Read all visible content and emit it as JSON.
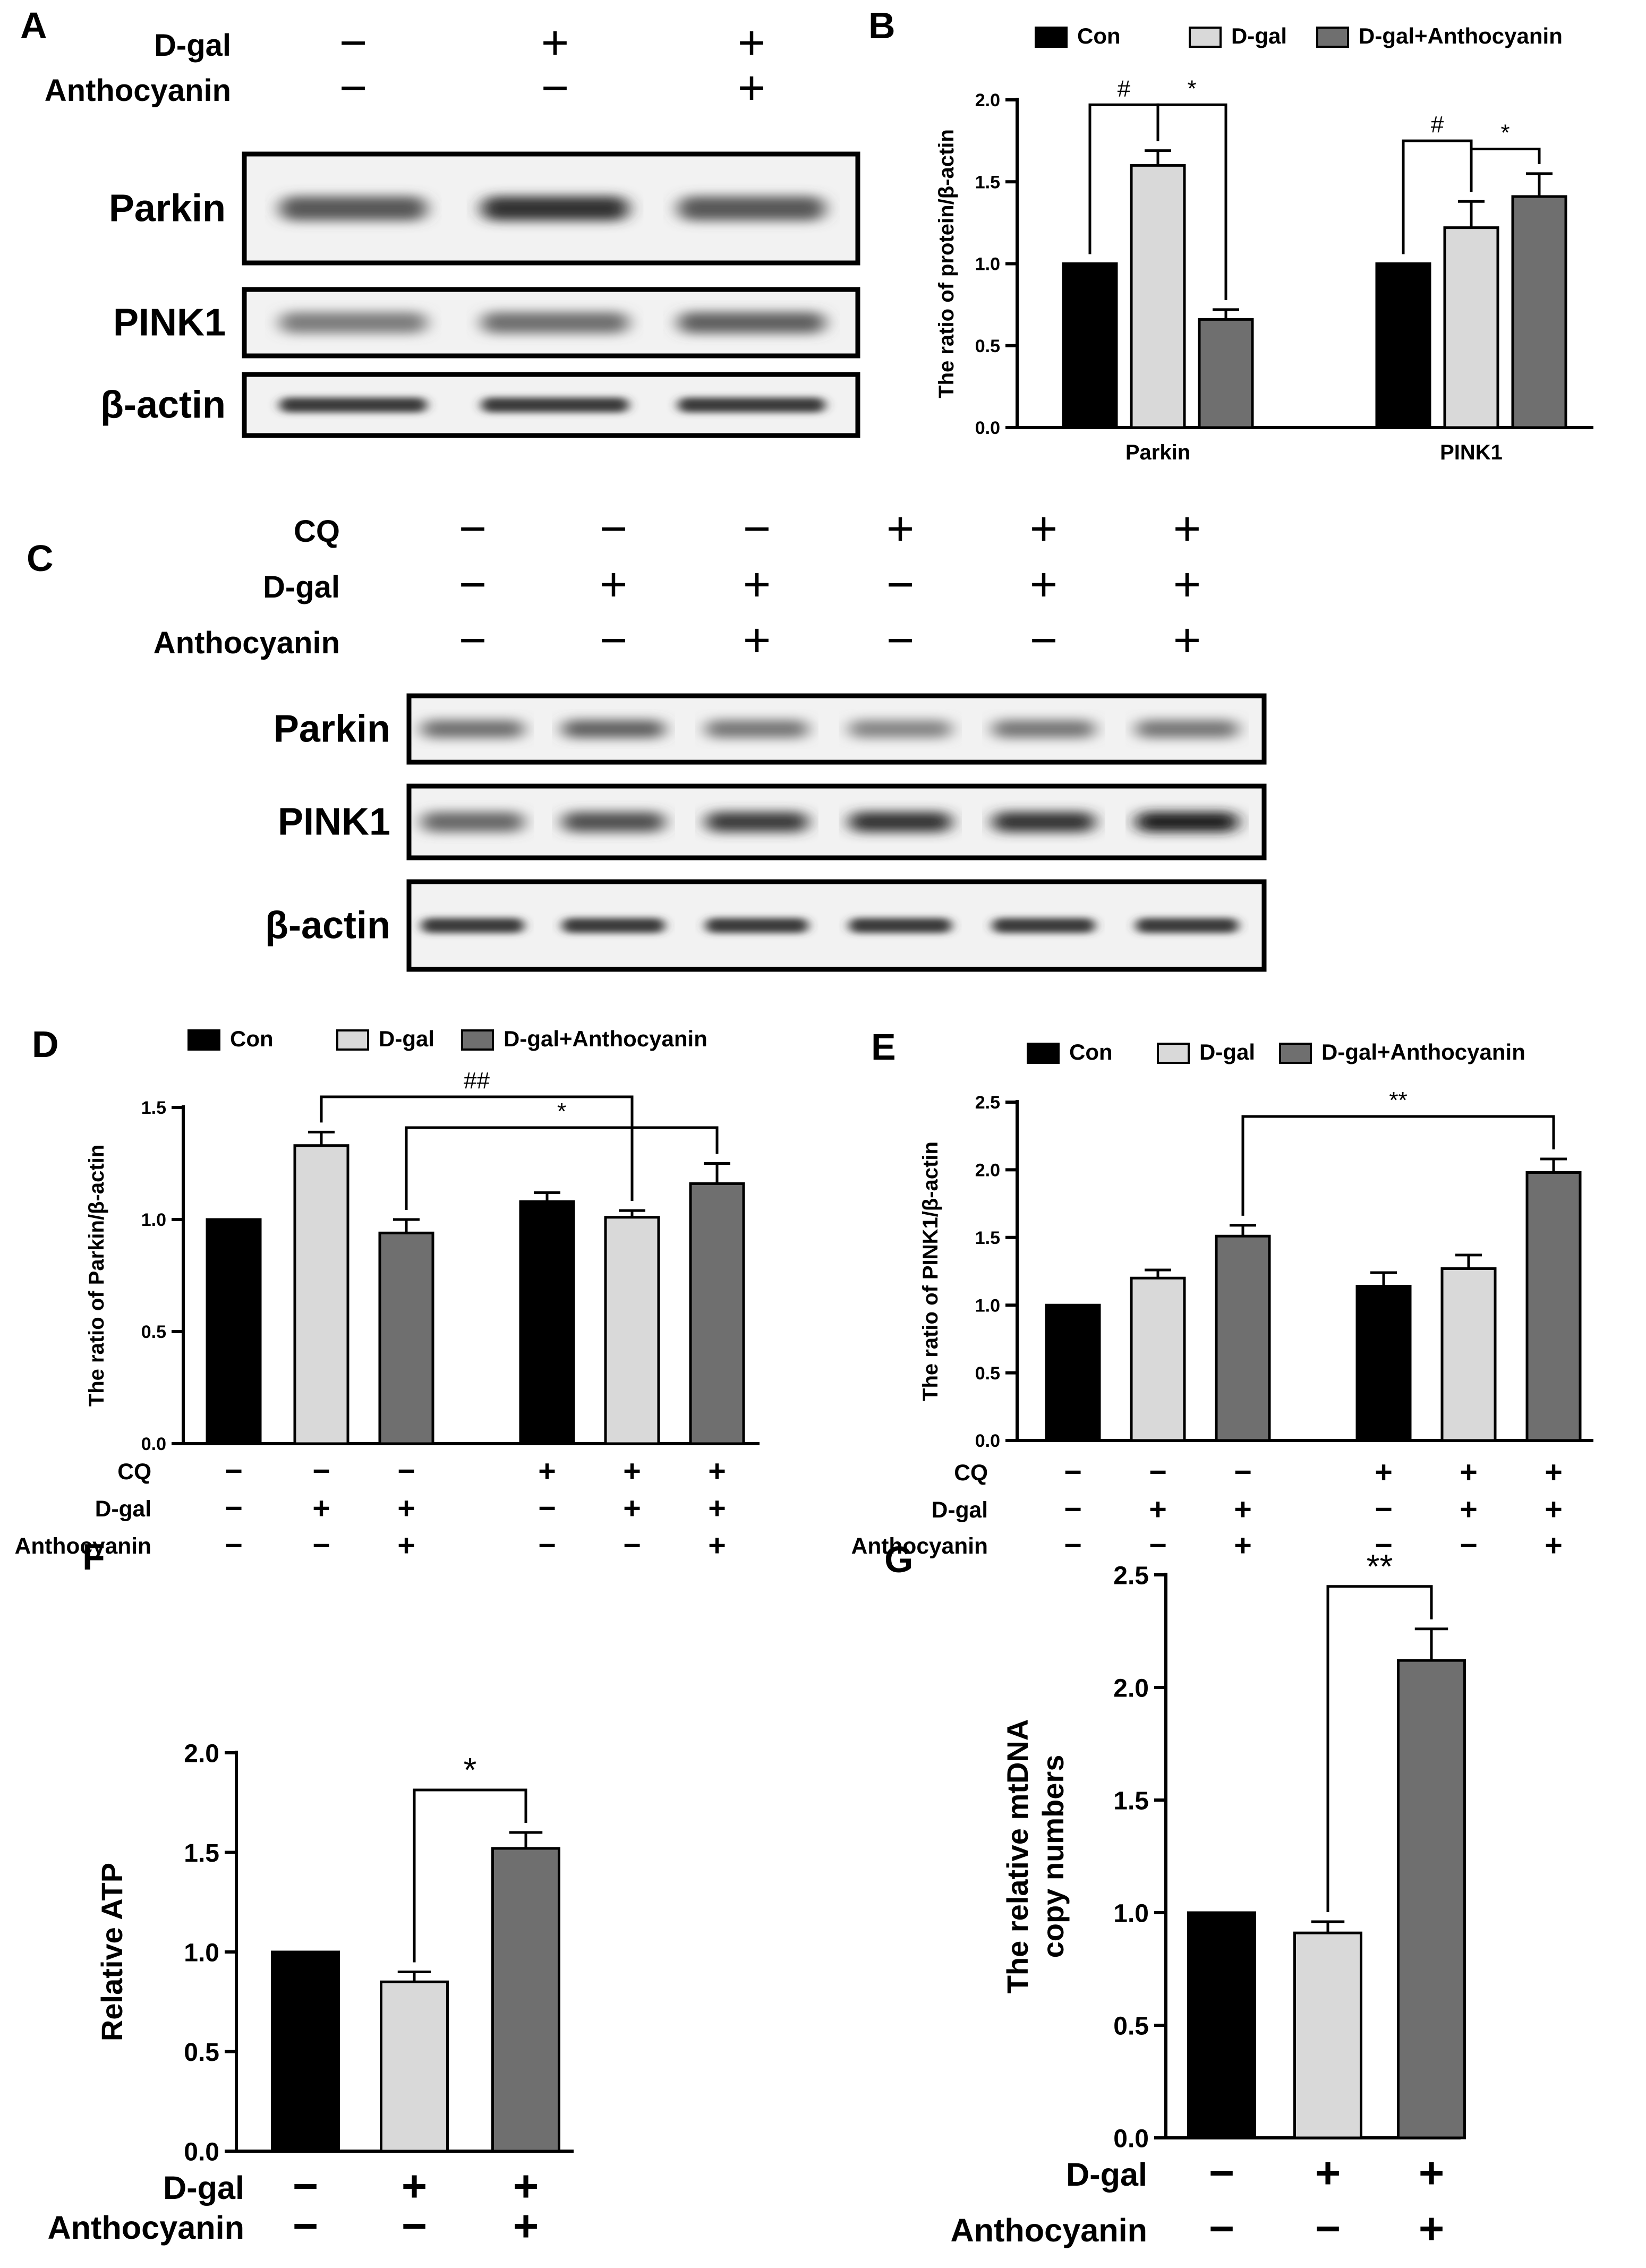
{
  "figure": {
    "panel_labels": [
      "A",
      "B",
      "C",
      "D",
      "E",
      "F",
      "G"
    ],
    "colors": {
      "con": "#000000",
      "dgal": "#d9d9d9",
      "dgal_antho": "#6f6f6f",
      "band": "#1a1a1a"
    },
    "blots": [
      {
        "panel": "A",
        "conditions": [
          {
            "name": "D-gal",
            "signs": [
              "−",
              "+",
              "+"
            ]
          },
          {
            "name": "Anthocyanin",
            "signs": [
              "−",
              "−",
              "+"
            ]
          }
        ],
        "rows": [
          {
            "label": "Parkin",
            "intensities": [
              0.55,
              0.8,
              0.55
            ]
          },
          {
            "label": "PINK1",
            "intensities": [
              0.3,
              0.4,
              0.5
            ]
          },
          {
            "label": "β-actin",
            "intensities": [
              0.75,
              0.75,
              0.75
            ]
          }
        ]
      },
      {
        "panel": "C",
        "conditions": [
          {
            "name": "CQ",
            "signs": [
              "−",
              "−",
              "−",
              "+",
              "+",
              "+"
            ]
          },
          {
            "name": "D-gal",
            "signs": [
              "−",
              "+",
              "+",
              "−",
              "+",
              "+"
            ]
          },
          {
            "name": "Anthocyanin",
            "signs": [
              "−",
              "−",
              "+",
              "−",
              "−",
              "+"
            ]
          }
        ],
        "rows": [
          {
            "label": "Parkin",
            "intensities": [
              0.4,
              0.5,
              0.35,
              0.25,
              0.35,
              0.35
            ]
          },
          {
            "label": "PINK1",
            "intensities": [
              0.45,
              0.6,
              0.75,
              0.8,
              0.8,
              0.95
            ]
          },
          {
            "label": "β-actin",
            "intensities": [
              0.75,
              0.75,
              0.75,
              0.75,
              0.75,
              0.75
            ]
          }
        ]
      }
    ]
  },
  "chart_data": [
    {
      "panel": "B",
      "type": "bar",
      "ylabel": "The ratio of protein/β-actin",
      "ylim": [
        0,
        2.0
      ],
      "yticks": [
        "0.0",
        "0.5",
        "1.0",
        "1.5",
        "2.0"
      ],
      "legend": {
        "placement": "top",
        "entries": [
          "Con",
          "D-gal",
          "D-gal+Anthocyanin"
        ]
      },
      "categories": [
        "Parkin",
        "PINK1"
      ],
      "series": [
        {
          "name": "Con",
          "values": [
            1.0,
            1.0
          ],
          "errors": [
            0,
            0
          ]
        },
        {
          "name": "D-gal",
          "values": [
            1.6,
            1.22
          ],
          "errors": [
            0.09,
            0.16
          ]
        },
        {
          "name": "D-gal+Anthocyanin",
          "values": [
            0.66,
            1.41
          ],
          "errors": [
            0.06,
            0.14
          ]
        }
      ],
      "annotations": [
        {
          "label": "#",
          "group": 0,
          "from": 0,
          "to": 1
        },
        {
          "label": "*",
          "group": 0,
          "from": 1,
          "to": 2
        },
        {
          "label": "#",
          "group": 1,
          "from": 0,
          "to": 1
        },
        {
          "label": "*",
          "group": 1,
          "from": 1,
          "to": 2
        }
      ]
    },
    {
      "panel": "D",
      "type": "bar",
      "ylabel": "The ratio of Parkin/β-actin",
      "ylim": [
        0,
        1.5
      ],
      "yticks": [
        "0.0",
        "0.5",
        "1.0",
        "1.5"
      ],
      "legend": {
        "placement": "top",
        "entries": [
          "Con",
          "D-gal",
          "D-gal+Anthocyanin"
        ]
      },
      "bars": [
        {
          "value": 1.0,
          "error": 0,
          "series": "Con"
        },
        {
          "value": 1.33,
          "error": 0.06,
          "series": "D-gal"
        },
        {
          "value": 0.94,
          "error": 0.06,
          "series": "D-gal+Anthocyanin"
        },
        {
          "value": 1.08,
          "error": 0.04,
          "series": "Con"
        },
        {
          "value": 1.01,
          "error": 0.03,
          "series": "D-gal"
        },
        {
          "value": 1.16,
          "error": 0.09,
          "series": "D-gal+Anthocyanin"
        }
      ],
      "conditions": [
        {
          "name": "CQ",
          "signs": [
            "−",
            "−",
            "−",
            "+",
            "+",
            "+"
          ]
        },
        {
          "name": "D-gal",
          "signs": [
            "−",
            "+",
            "+",
            "−",
            "+",
            "+"
          ]
        },
        {
          "name": "Anthocyanin",
          "signs": [
            "−",
            "−",
            "+",
            "−",
            "−",
            "+"
          ]
        }
      ],
      "annotations": [
        {
          "label": "##",
          "from": 1,
          "to": 4
        },
        {
          "label": "*",
          "from": 2,
          "to": 5
        }
      ]
    },
    {
      "panel": "E",
      "type": "bar",
      "ylabel": "The ratio of PINK1/β-actin",
      "ylim": [
        0,
        2.5
      ],
      "yticks": [
        "0.0",
        "0.5",
        "1.0",
        "1.5",
        "2.0",
        "2.5"
      ],
      "legend": {
        "placement": "top",
        "entries": [
          "Con",
          "D-gal",
          "D-gal+Anthocyanin"
        ]
      },
      "bars": [
        {
          "value": 1.0,
          "error": 0,
          "series": "Con"
        },
        {
          "value": 1.2,
          "error": 0.06,
          "series": "D-gal"
        },
        {
          "value": 1.51,
          "error": 0.08,
          "series": "D-gal+Anthocyanin"
        },
        {
          "value": 1.14,
          "error": 0.1,
          "series": "Con"
        },
        {
          "value": 1.27,
          "error": 0.1,
          "series": "D-gal"
        },
        {
          "value": 1.98,
          "error": 0.1,
          "series": "D-gal+Anthocyanin"
        }
      ],
      "conditions": [
        {
          "name": "CQ",
          "signs": [
            "−",
            "−",
            "−",
            "+",
            "+",
            "+"
          ]
        },
        {
          "name": "D-gal",
          "signs": [
            "−",
            "+",
            "+",
            "−",
            "+",
            "+"
          ]
        },
        {
          "name": "Anthocyanin",
          "signs": [
            "−",
            "−",
            "+",
            "−",
            "−",
            "+"
          ]
        }
      ],
      "annotations": [
        {
          "label": "**",
          "from": 2,
          "to": 5
        }
      ]
    },
    {
      "panel": "F",
      "type": "bar",
      "ylabel": "Relative ATP",
      "ylim": [
        0,
        2.0
      ],
      "yticks": [
        "0.0",
        "0.5",
        "1.0",
        "1.5",
        "2.0"
      ],
      "bars": [
        {
          "value": 1.0,
          "error": 0,
          "series": "Con"
        },
        {
          "value": 0.85,
          "error": 0.05,
          "series": "D-gal"
        },
        {
          "value": 1.52,
          "error": 0.08,
          "series": "D-gal+Anthocyanin"
        }
      ],
      "conditions": [
        {
          "name": "D-gal",
          "signs": [
            "−",
            "+",
            "+"
          ]
        },
        {
          "name": "Anthocyanin",
          "signs": [
            "−",
            "−",
            "+"
          ]
        }
      ],
      "annotations": [
        {
          "label": "*",
          "from": 1,
          "to": 2
        }
      ]
    },
    {
      "panel": "G",
      "type": "bar",
      "ylabel": [
        "The relative mtDNA",
        "copy numbers"
      ],
      "ylim": [
        0,
        2.5
      ],
      "yticks": [
        "0.0",
        "0.5",
        "1.0",
        "1.5",
        "2.0",
        "2.5"
      ],
      "bars": [
        {
          "value": 1.0,
          "error": 0,
          "series": "Con"
        },
        {
          "value": 0.91,
          "error": 0.05,
          "series": "D-gal"
        },
        {
          "value": 2.12,
          "error": 0.14,
          "series": "D-gal+Anthocyanin"
        }
      ],
      "conditions": [
        {
          "name": "D-gal",
          "signs": [
            "−",
            "+",
            "+"
          ]
        },
        {
          "name": "Anthocyanin",
          "signs": [
            "−",
            "−",
            "+"
          ]
        }
      ],
      "annotations": [
        {
          "label": "**",
          "from": 1,
          "to": 2
        }
      ]
    }
  ]
}
